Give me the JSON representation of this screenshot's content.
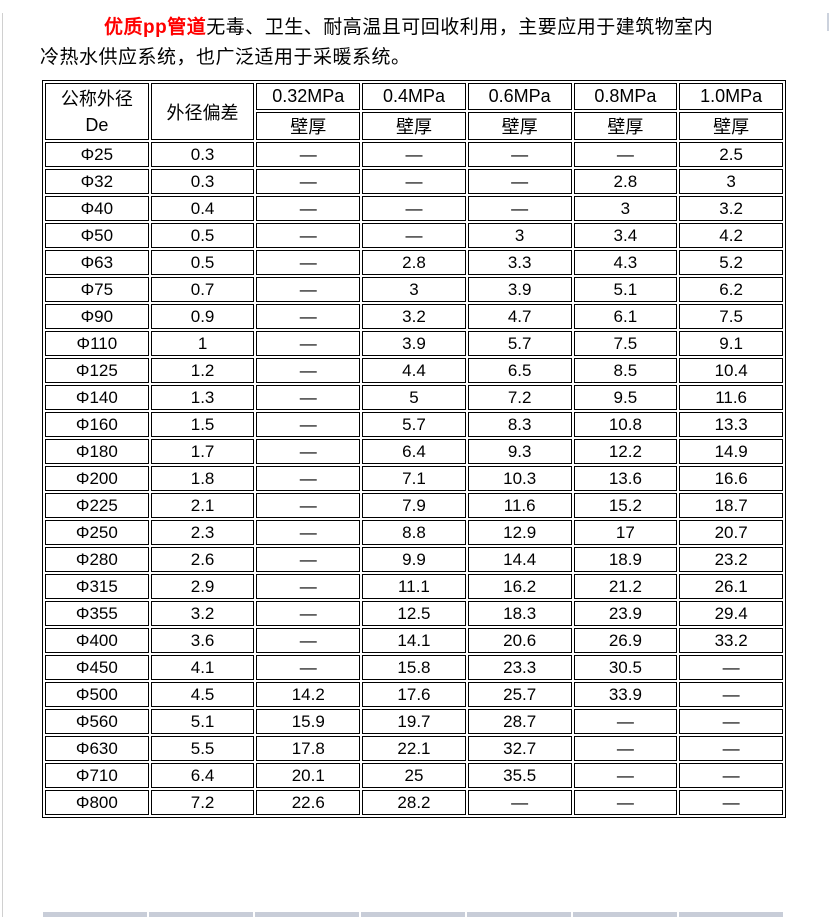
{
  "intro": {
    "highlight": "优质pp管道",
    "line1_rest": "无毒、卫生、耐高温且可回收利用，主要应用于建筑物室内",
    "line2": "冷热水供应系统，也广泛适用于采暖系统。"
  },
  "table": {
    "header": {
      "col1_title": "公称外径",
      "col1_subtitle": "De",
      "col2_title": "外径偏差",
      "pressure_labels": [
        "0.32MPa",
        "0.4MPa",
        "0.6MPa",
        "0.8MPa",
        "1.0MPa"
      ],
      "wall_thickness_label": "壁厚"
    },
    "rows": [
      [
        "Φ25",
        "0.3",
        "—",
        "—",
        "—",
        "—",
        "2.5"
      ],
      [
        "Φ32",
        "0.3",
        "—",
        "—",
        "—",
        "2.8",
        "3"
      ],
      [
        "Φ40",
        "0.4",
        "—",
        "—",
        "—",
        "3",
        "3.2"
      ],
      [
        "Φ50",
        "0.5",
        "—",
        "—",
        "3",
        "3.4",
        "4.2"
      ],
      [
        "Φ63",
        "0.5",
        "—",
        "2.8",
        "3.3",
        "4.3",
        "5.2"
      ],
      [
        "Φ75",
        "0.7",
        "—",
        "3",
        "3.9",
        "5.1",
        "6.2"
      ],
      [
        "Φ90",
        "0.9",
        "—",
        "3.2",
        "4.7",
        "6.1",
        "7.5"
      ],
      [
        "Φ110",
        "1",
        "—",
        "3.9",
        "5.7",
        "7.5",
        "9.1"
      ],
      [
        "Φ125",
        "1.2",
        "—",
        "4.4",
        "6.5",
        "8.5",
        "10.4"
      ],
      [
        "Φ140",
        "1.3",
        "—",
        "5",
        "7.2",
        "9.5",
        "11.6"
      ],
      [
        "Φ160",
        "1.5",
        "—",
        "5.7",
        "8.3",
        "10.8",
        "13.3"
      ],
      [
        "Φ180",
        "1.7",
        "—",
        "6.4",
        "9.3",
        "12.2",
        "14.9"
      ],
      [
        "Φ200",
        "1.8",
        "—",
        "7.1",
        "10.3",
        "13.6",
        "16.6"
      ],
      [
        "Φ225",
        "2.1",
        "—",
        "7.9",
        "11.6",
        "15.2",
        "18.7"
      ],
      [
        "Φ250",
        "2.3",
        "—",
        "8.8",
        "12.9",
        "17",
        "20.7"
      ],
      [
        "Φ280",
        "2.6",
        "—",
        "9.9",
        "14.4",
        "18.9",
        "23.2"
      ],
      [
        "Φ315",
        "2.9",
        "—",
        "11.1",
        "16.2",
        "21.2",
        "26.1"
      ],
      [
        "Φ355",
        "3.2",
        "—",
        "12.5",
        "18.3",
        "23.9",
        "29.4"
      ],
      [
        "Φ400",
        "3.6",
        "—",
        "14.1",
        "20.6",
        "26.9",
        "33.2"
      ],
      [
        "Φ450",
        "4.1",
        "—",
        "15.8",
        "23.3",
        "30.5",
        "—"
      ],
      [
        "Φ500",
        "4.5",
        "14.2",
        "17.6",
        "25.7",
        "33.9",
        "—"
      ],
      [
        "Φ560",
        "5.1",
        "15.9",
        "19.7",
        "28.7",
        "—",
        "—"
      ],
      [
        "Φ630",
        "5.5",
        "17.8",
        "22.1",
        "32.7",
        "—",
        "—"
      ],
      [
        "Φ710",
        "6.4",
        "20.1",
        "25",
        "35.5",
        "—",
        "—"
      ],
      [
        "Φ800",
        "7.2",
        "22.6",
        "28.2",
        "—",
        "—",
        "—"
      ]
    ]
  },
  "colors": {
    "accent_red": "#ff0000",
    "table_border": "#000000",
    "next_table_fill": "#c8cdd8"
  }
}
